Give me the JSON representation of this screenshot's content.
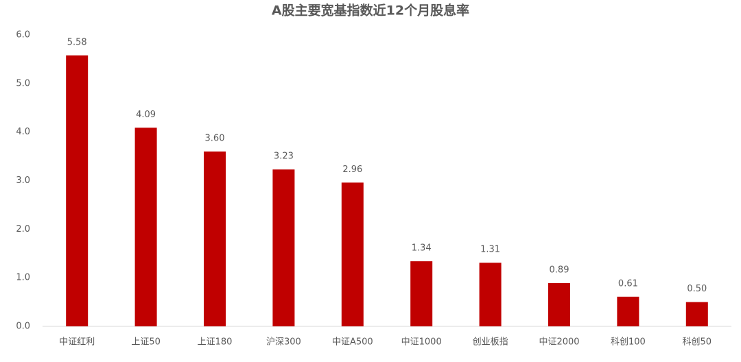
{
  "chart_data": {
    "type": "bar",
    "title": "A股主要宽基指数近12个月股息率",
    "categories": [
      "中证红利",
      "上证50",
      "上证180",
      "沪深300",
      "中证A500",
      "中证1000",
      "创业板指",
      "中证2000",
      "科创100",
      "科创50"
    ],
    "values": [
      5.58,
      4.09,
      3.6,
      3.23,
      2.96,
      1.34,
      1.31,
      0.89,
      0.61,
      0.5
    ],
    "value_labels": [
      "5.58",
      "4.09",
      "3.60",
      "3.23",
      "2.96",
      "1.34",
      "1.31",
      "0.89",
      "0.61",
      "0.50"
    ],
    "color": "#c00000",
    "ylim": [
      0,
      6
    ],
    "yticks": [
      {
        "value": 0,
        "label": "0.0"
      },
      {
        "value": 1,
        "label": "1.0"
      },
      {
        "value": 2,
        "label": "2.0"
      },
      {
        "value": 3,
        "label": "3.0"
      },
      {
        "value": 4,
        "label": "4.0"
      },
      {
        "value": 5,
        "label": "5.0"
      },
      {
        "value": 6,
        "label": "6.0"
      }
    ],
    "grid": false
  }
}
